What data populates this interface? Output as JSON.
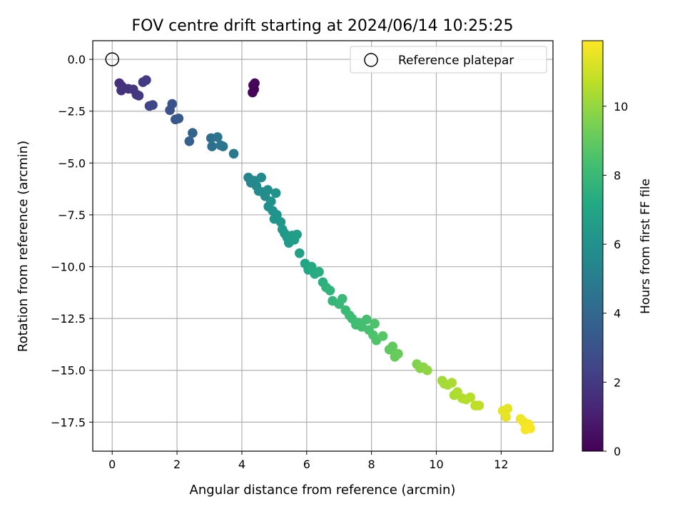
{
  "chart_data": {
    "type": "scatter",
    "title": "FOV centre drift starting at 2024/06/14 10:25:25",
    "xlabel": "Angular distance from reference (arcmin)",
    "ylabel": "Rotation from reference (arcmin)",
    "xlim": [
      -0.6,
      13.6
    ],
    "ylim": [
      -18.9,
      0.9
    ],
    "xticks": [
      0,
      2,
      4,
      6,
      8,
      10,
      12
    ],
    "yticks": [
      0.0,
      -2.5,
      -5.0,
      -7.5,
      -10.0,
      -12.5,
      -15.0,
      -17.5
    ],
    "xtick_labels": [
      "0",
      "2",
      "4",
      "6",
      "8",
      "10",
      "12"
    ],
    "ytick_labels": [
      "0.0",
      "−2.5",
      "−5.0",
      "−7.5",
      "−10.0",
      "−12.5",
      "−15.0",
      "−17.5"
    ],
    "grid": true,
    "legend": {
      "position": "top-right",
      "entries": [
        "Reference platepar"
      ]
    },
    "reference_point": {
      "x": 0,
      "y": 0
    },
    "colorbar": {
      "label": "Hours from first FF file",
      "colormap": "viridis",
      "range": [
        0,
        11.9
      ],
      "ticks": [
        0,
        2,
        4,
        6,
        8,
        10
      ],
      "tick_labels": [
        "0",
        "2",
        "4",
        "6",
        "8",
        "10"
      ]
    },
    "points": [
      [
        4.35,
        -1.25,
        0.05
      ],
      [
        4.38,
        -1.45,
        0.1
      ],
      [
        4.33,
        -1.6,
        0.15
      ],
      [
        4.4,
        -1.15,
        0.2
      ],
      [
        0.22,
        -1.15,
        1.6
      ],
      [
        0.3,
        -1.3,
        1.7
      ],
      [
        0.28,
        -1.5,
        1.75
      ],
      [
        0.5,
        -1.42,
        1.8
      ],
      [
        0.65,
        -1.45,
        1.85
      ],
      [
        0.75,
        -1.7,
        1.9
      ],
      [
        0.82,
        -1.75,
        1.95
      ],
      [
        0.95,
        -1.1,
        2.0
      ],
      [
        1.05,
        -1.0,
        2.1
      ],
      [
        1.15,
        -2.25,
        2.4
      ],
      [
        1.25,
        -2.2,
        2.5
      ],
      [
        1.78,
        -2.45,
        3.0
      ],
      [
        1.85,
        -2.15,
        3.1
      ],
      [
        1.95,
        -2.9,
        3.2
      ],
      [
        2.05,
        -2.85,
        3.3
      ],
      [
        2.38,
        -3.95,
        3.7
      ],
      [
        2.48,
        -3.55,
        3.8
      ],
      [
        3.05,
        -3.8,
        4.3
      ],
      [
        3.08,
        -4.2,
        4.4
      ],
      [
        3.25,
        -3.75,
        4.5
      ],
      [
        3.35,
        -4.15,
        4.55
      ],
      [
        3.42,
        -4.2,
        4.6
      ],
      [
        3.75,
        -4.55,
        4.8
      ],
      [
        4.2,
        -5.7,
        5.4
      ],
      [
        4.28,
        -5.95,
        5.45
      ],
      [
        4.38,
        -5.85,
        5.5
      ],
      [
        4.45,
        -6.1,
        5.55
      ],
      [
        4.52,
        -6.35,
        5.6
      ],
      [
        4.6,
        -5.7,
        5.65
      ],
      [
        4.65,
        -6.4,
        5.7
      ],
      [
        4.72,
        -6.6,
        5.75
      ],
      [
        4.8,
        -6.3,
        5.8
      ],
      [
        4.82,
        -7.1,
        5.9
      ],
      [
        4.9,
        -6.85,
        5.95
      ],
      [
        4.95,
        -7.3,
        6.0
      ],
      [
        5.05,
        -6.45,
        6.05
      ],
      [
        5.0,
        -7.7,
        6.1
      ],
      [
        5.08,
        -7.5,
        6.15
      ],
      [
        5.2,
        -7.85,
        6.2
      ],
      [
        5.25,
        -8.2,
        6.3
      ],
      [
        5.32,
        -8.4,
        6.35
      ],
      [
        5.4,
        -8.6,
        6.4
      ],
      [
        5.45,
        -8.85,
        6.45
      ],
      [
        5.55,
        -8.5,
        6.5
      ],
      [
        5.62,
        -8.7,
        6.55
      ],
      [
        5.7,
        -8.45,
        6.6
      ],
      [
        5.78,
        -9.35,
        6.8
      ],
      [
        5.95,
        -9.85,
        7.0
      ],
      [
        6.05,
        -10.15,
        7.1
      ],
      [
        6.15,
        -10.0,
        7.2
      ],
      [
        6.25,
        -10.35,
        7.3
      ],
      [
        6.38,
        -10.25,
        7.35
      ],
      [
        6.5,
        -10.75,
        7.5
      ],
      [
        6.6,
        -11.0,
        7.6
      ],
      [
        6.72,
        -11.15,
        7.7
      ],
      [
        6.8,
        -11.65,
        7.8
      ],
      [
        7.0,
        -11.8,
        7.9
      ],
      [
        7.1,
        -11.55,
        8.0
      ],
      [
        7.2,
        -12.1,
        8.05
      ],
      [
        7.32,
        -12.35,
        8.1
      ],
      [
        7.4,
        -12.5,
        8.15
      ],
      [
        7.52,
        -12.8,
        8.2
      ],
      [
        7.6,
        -12.7,
        8.25
      ],
      [
        7.7,
        -12.9,
        8.3
      ],
      [
        7.85,
        -12.55,
        8.35
      ],
      [
        7.92,
        -13.05,
        8.4
      ],
      [
        8.05,
        -13.3,
        8.5
      ],
      [
        8.1,
        -12.75,
        8.55
      ],
      [
        8.15,
        -13.55,
        8.6
      ],
      [
        8.35,
        -13.35,
        8.7
      ],
      [
        8.55,
        -14.0,
        8.9
      ],
      [
        8.65,
        -13.85,
        9.0
      ],
      [
        8.72,
        -14.35,
        9.1
      ],
      [
        8.82,
        -14.2,
        9.15
      ],
      [
        9.4,
        -14.7,
        9.6
      ],
      [
        9.5,
        -14.9,
        9.7
      ],
      [
        9.6,
        -14.85,
        9.8
      ],
      [
        9.72,
        -15.0,
        9.9
      ],
      [
        10.18,
        -15.5,
        10.2
      ],
      [
        10.25,
        -15.65,
        10.25
      ],
      [
        10.35,
        -15.7,
        10.3
      ],
      [
        10.48,
        -15.6,
        10.35
      ],
      [
        10.55,
        -16.2,
        10.4
      ],
      [
        10.65,
        -16.05,
        10.45
      ],
      [
        10.8,
        -16.35,
        10.5
      ],
      [
        10.92,
        -16.4,
        10.55
      ],
      [
        11.05,
        -16.3,
        10.6
      ],
      [
        11.2,
        -16.7,
        10.7
      ],
      [
        11.32,
        -16.7,
        10.75
      ],
      [
        12.05,
        -16.95,
        11.4
      ],
      [
        12.15,
        -17.25,
        11.45
      ],
      [
        12.2,
        -16.85,
        11.5
      ],
      [
        12.6,
        -17.35,
        11.6
      ],
      [
        12.7,
        -17.5,
        11.65
      ],
      [
        12.75,
        -17.85,
        11.7
      ],
      [
        12.85,
        -17.6,
        11.75
      ],
      [
        12.9,
        -17.8,
        11.8
      ]
    ]
  }
}
